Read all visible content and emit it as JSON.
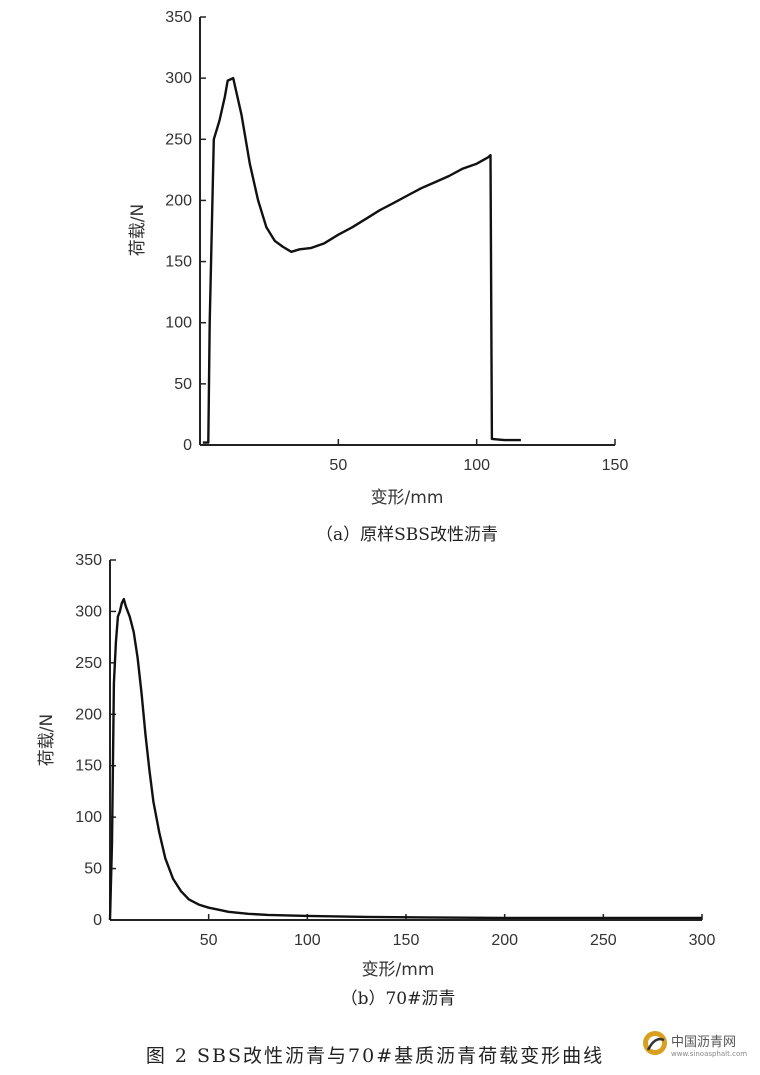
{
  "figure_caption": "图 2 SBS改性沥青与70#基质沥青荷载变形曲线",
  "watermark": {
    "text_cn": "中国沥青网",
    "text_en": "www.sinoasphalt.com",
    "icon": "asphalt-logo-icon"
  },
  "chart_data": [
    {
      "type": "line",
      "caption": "（a）原样SBS改性沥青",
      "xlabel": "变形/mm",
      "ylabel": "荷载/N",
      "xlim": [
        0,
        150
      ],
      "ylim": [
        0,
        350
      ],
      "xticks": [
        50,
        100,
        150
      ],
      "yticks": [
        0,
        50,
        100,
        150,
        200,
        250,
        300,
        350
      ],
      "series": [
        {
          "x": [
            1,
            2,
            3,
            3.5,
            5,
            7,
            9,
            10,
            12,
            15,
            18,
            21,
            24,
            27,
            30,
            33,
            36,
            40,
            45,
            50,
            55,
            60,
            65,
            70,
            75,
            80,
            85,
            90,
            95,
            100,
            104,
            105,
            105.5,
            110,
            116
          ],
          "y": [
            2,
            2,
            2,
            100,
            250,
            265,
            285,
            298,
            300,
            270,
            230,
            200,
            178,
            167,
            162,
            158,
            160,
            161,
            165,
            172,
            178,
            185,
            192,
            198,
            204,
            210,
            215,
            220,
            226,
            230,
            235,
            237,
            5,
            4,
            4
          ]
        }
      ]
    },
    {
      "type": "line",
      "caption": "（b）70#沥青",
      "xlabel": "变形/mm",
      "ylabel": "荷载/N",
      "xlim": [
        0,
        300
      ],
      "ylim": [
        0,
        350
      ],
      "xticks": [
        50,
        100,
        150,
        200,
        250,
        300
      ],
      "yticks": [
        0,
        50,
        100,
        150,
        200,
        250,
        300,
        350
      ],
      "series": [
        {
          "x": [
            0,
            1,
            2,
            3,
            4,
            5,
            6,
            7,
            8,
            10,
            12,
            14,
            16,
            18,
            20,
            22,
            25,
            28,
            32,
            36,
            40,
            45,
            50,
            55,
            60,
            70,
            80,
            100,
            130,
            160,
            200,
            250,
            300
          ],
          "y": [
            0,
            75,
            230,
            270,
            295,
            300,
            308,
            312,
            305,
            295,
            280,
            255,
            220,
            180,
            145,
            115,
            85,
            60,
            40,
            28,
            20,
            15,
            12,
            10,
            8,
            6,
            5,
            4,
            3,
            2.5,
            2,
            2,
            2
          ]
        }
      ]
    }
  ]
}
